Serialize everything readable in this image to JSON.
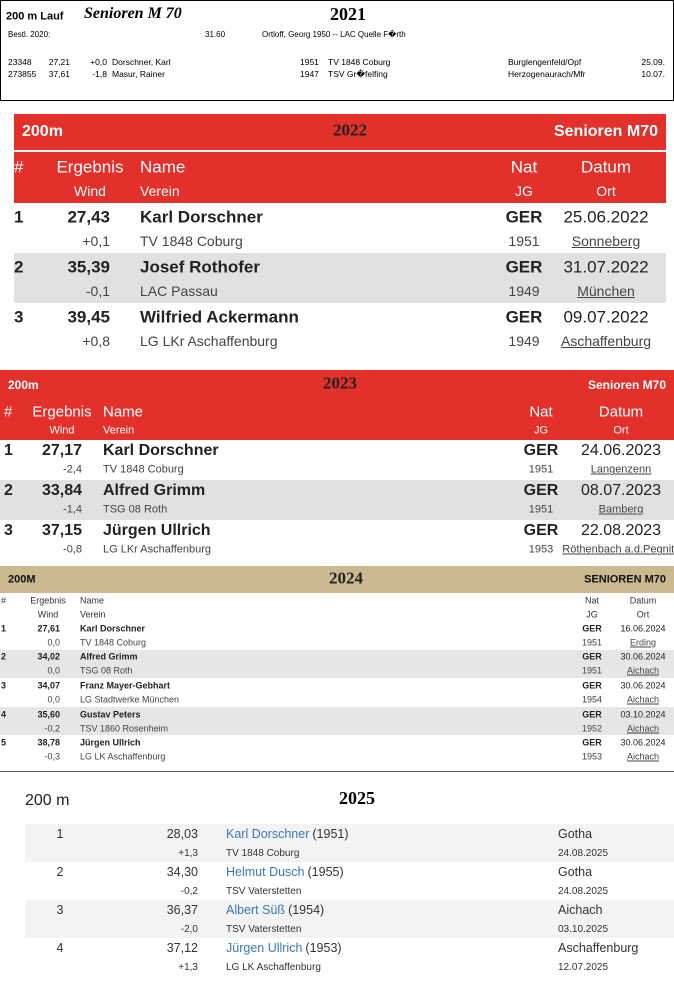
{
  "s2021": {
    "header": {
      "event": "200 m Lauf",
      "category": "Senioren M 70",
      "year": "2021"
    },
    "best": {
      "label": "Bestl. 2020:",
      "value": "31.60",
      "holder": "Ortloff, Georg 1950 -- LAC Quelle F�rth"
    },
    "rows": [
      [
        "23348",
        "27,21",
        "+0,0",
        "Dorschner, Karl",
        "1951",
        "TV 1848 Coburg",
        "Burglengenfeld/Opf",
        "25.09."
      ],
      [
        "273855",
        "37,61",
        "-1,8",
        "Masur, Rainer",
        "1947",
        "TSV Gr�felfing",
        "Herzogenaurach/Mfr",
        "10.07."
      ]
    ]
  },
  "s2022": {
    "header": {
      "event": "200m",
      "year": "2022",
      "category": "Senioren M70"
    },
    "columns": [
      "#",
      "Ergebnis",
      "Name",
      "Nat",
      "Datum"
    ],
    "subcolumns": [
      "Wind",
      "Verein",
      "JG",
      "Ort"
    ],
    "rows": [
      {
        "rank": "1",
        "result": "27,43",
        "name": "Karl Dorschner",
        "nat": "GER",
        "date": "25.06.2022",
        "wind": "+0,1",
        "club": "TV 1848 Coburg",
        "born": "1951",
        "place": "Sonneberg"
      },
      {
        "rank": "2",
        "result": "35,39",
        "name": "Josef Rothofer",
        "nat": "GER",
        "date": "31.07.2022",
        "wind": "-0,1",
        "club": "LAC Passau",
        "born": "1949",
        "place": "München"
      },
      {
        "rank": "3",
        "result": "39,45",
        "name": "Wilfried Ackermann",
        "nat": "GER",
        "date": "09.07.2022",
        "wind": "+0,8",
        "club": "LG LKr Aschaffenburg",
        "born": "1949",
        "place": "Aschaffenburg"
      }
    ]
  },
  "s2023": {
    "header": {
      "event": "200m",
      "year": "2023",
      "category": "Senioren M70"
    },
    "columns": [
      "#",
      "Ergebnis",
      "Name",
      "Nat",
      "Datum"
    ],
    "subcolumns": [
      "Wind",
      "Verein",
      "JG",
      "Ort"
    ],
    "rows": [
      {
        "rank": "1",
        "result": "27,17",
        "name": "Karl Dorschner",
        "nat": "GER",
        "date": "24.06.2023",
        "wind": "-2,4",
        "club": "TV 1848 Coburg",
        "born": "1951",
        "place": "Langenzenn"
      },
      {
        "rank": "2",
        "result": "33,84",
        "name": "Alfred Grimm",
        "nat": "GER",
        "date": "08.07.2023",
        "wind": "-1,4",
        "club": "TSG 08 Roth",
        "born": "1951",
        "place": "Bamberg"
      },
      {
        "rank": "3",
        "result": "37,15",
        "name": "Jürgen Ullrich",
        "nat": "GER",
        "date": "22.08.2023",
        "wind": "-0,8",
        "club": "LG LKr Aschaffenburg",
        "born": "1953",
        "place": "Röthenbach a.d.Pegnitz"
      }
    ]
  },
  "s2024": {
    "header": {
      "event": "200M",
      "year": "2024",
      "category": "SENIOREN M70"
    },
    "columns": [
      "#",
      "Ergebnis",
      "Name",
      "Nat",
      "Datum"
    ],
    "subcolumns": [
      "Wind",
      "Verein",
      "JG",
      "Ort"
    ],
    "rows": [
      {
        "rank": "1",
        "result": "27,61",
        "name": "Karl Dorschner",
        "nat": "GER",
        "date": "16.06.2024",
        "wind": "0,0",
        "club": "TV 1848 Coburg",
        "born": "1951",
        "place": "Erding"
      },
      {
        "rank": "2",
        "result": "34,02",
        "name": "Alfred Grimm",
        "nat": "GER",
        "date": "30.06.2024",
        "wind": "0,0",
        "club": "TSG 08 Roth",
        "born": "1951",
        "place": "Aichach"
      },
      {
        "rank": "3",
        "result": "34,07",
        "name": "Franz Mayer-Gebhart",
        "nat": "GER",
        "date": "30.06.2024",
        "wind": "0,0",
        "club": "LG Stadtwerke München",
        "born": "1954",
        "place": "Aichach"
      },
      {
        "rank": "4",
        "result": "35,60",
        "name": "Gustav Peters",
        "nat": "GER",
        "date": "03.10.2024",
        "wind": "-0,2",
        "club": "TSV 1860 Rosenheim",
        "born": "1952",
        "place": "Aichach"
      },
      {
        "rank": "5",
        "result": "38,78",
        "name": "Jürgen Ullrich",
        "nat": "GER",
        "date": "30.06.2024",
        "wind": "-0,3",
        "club": "LG LK Aschaffenburg",
        "born": "1953",
        "place": "Aichach"
      }
    ]
  },
  "s2025": {
    "header": {
      "event": "200 m",
      "year": "2025"
    },
    "rows": [
      {
        "rank": "1",
        "result": "28,03",
        "name": "Karl Dorschner",
        "born": "(1951)",
        "place": "Gotha",
        "wind": "+1,3",
        "club": "TV 1848 Coburg",
        "date": "24.08.2025"
      },
      {
        "rank": "2",
        "result": "34,30",
        "name": "Helmut Dusch",
        "born": "(1955)",
        "place": "Gotha",
        "wind": "-0,2",
        "club": "TSV Vaterstetten",
        "date": "24.08.2025"
      },
      {
        "rank": "3",
        "result": "36,37",
        "name": "Albert Süß",
        "born": "(1954)",
        "place": "Aichach",
        "wind": "-2,0",
        "club": "TSV Vaterstetten",
        "date": "03.10.2025"
      },
      {
        "rank": "4",
        "result": "37,12",
        "name": "Jürgen Ullrich",
        "born": "(1953)",
        "place": "Aschaffenburg",
        "wind": "+1,3",
        "club": "LG LK Aschaffenburg",
        "date": "12.07.2025"
      }
    ]
  }
}
